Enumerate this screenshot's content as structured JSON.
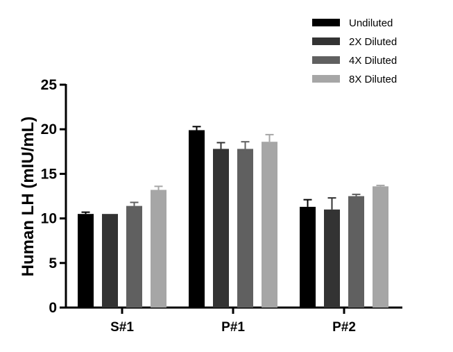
{
  "chart_data": {
    "type": "bar",
    "title": "",
    "xlabel": "",
    "ylabel": "Human LH (mIU/mL)",
    "ylim": [
      0,
      25
    ],
    "yticks": [
      "0",
      "5",
      "10",
      "15",
      "20",
      "25"
    ],
    "categories": [
      "S#1",
      "P#1",
      "P#2"
    ],
    "legend_position": "top-right",
    "series": [
      {
        "name": "Undiluted",
        "color": "#000000",
        "values": [
          10.5,
          19.9,
          11.3
        ],
        "errors": [
          0.2,
          0.4,
          0.8
        ]
      },
      {
        "name": "2X Diluted",
        "color": "#333333",
        "values": [
          10.5,
          17.8,
          11.0
        ],
        "errors": [
          0.0,
          0.7,
          1.3
        ]
      },
      {
        "name": "4X Diluted",
        "color": "#606060",
        "values": [
          11.4,
          17.8,
          12.5
        ],
        "errors": [
          0.4,
          0.8,
          0.2
        ]
      },
      {
        "name": "8X Diluted",
        "color": "#a6a6a6",
        "values": [
          13.2,
          18.6,
          13.6
        ],
        "errors": [
          0.4,
          0.8,
          0.1
        ]
      }
    ]
  }
}
